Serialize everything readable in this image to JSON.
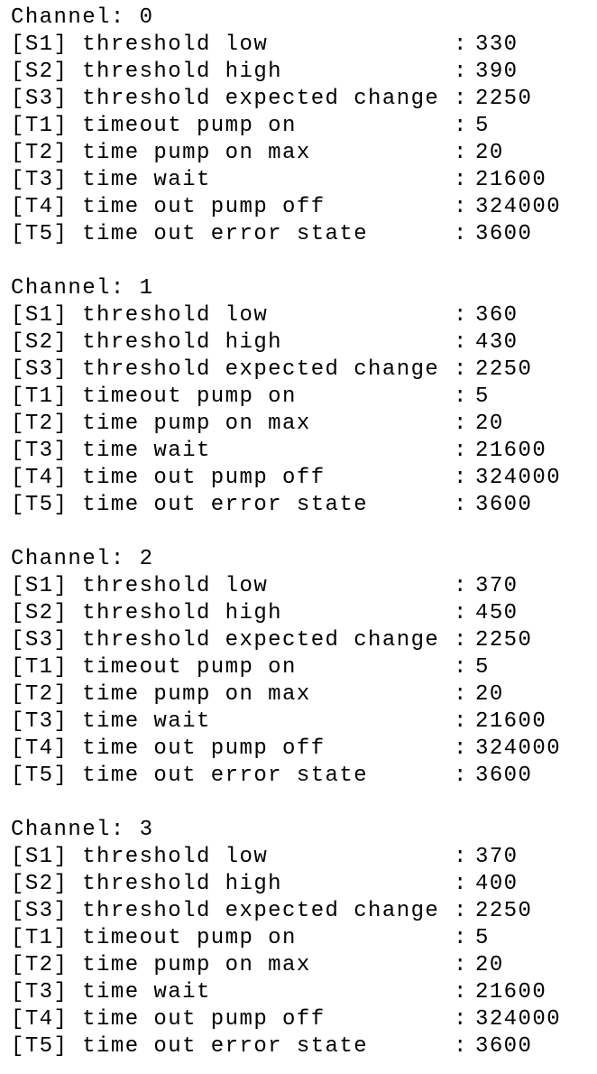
{
  "separator": ":",
  "channels": [
    {
      "header": "Channel: 0",
      "rows": [
        {
          "label": "[S1] threshold low",
          "value": 330
        },
        {
          "label": "[S2] threshold high",
          "value": 390
        },
        {
          "label": "[S3] threshold expected change",
          "value": 2250
        },
        {
          "label": "[T1] timeout pump on",
          "value": 5
        },
        {
          "label": "[T2] time pump on max",
          "value": 20
        },
        {
          "label": "[T3] time wait",
          "value": 21600
        },
        {
          "label": "[T4] time out pump off",
          "value": 324000
        },
        {
          "label": "[T5] time out error state",
          "value": 3600
        }
      ]
    },
    {
      "header": "Channel: 1",
      "rows": [
        {
          "label": "[S1] threshold low",
          "value": 360
        },
        {
          "label": "[S2] threshold high",
          "value": 430
        },
        {
          "label": "[S3] threshold expected change",
          "value": 2250
        },
        {
          "label": "[T1] timeout pump on",
          "value": 5
        },
        {
          "label": "[T2] time pump on max",
          "value": 20
        },
        {
          "label": "[T3] time wait",
          "value": 21600
        },
        {
          "label": "[T4] time out pump off",
          "value": 324000
        },
        {
          "label": "[T5] time out error state",
          "value": 3600
        }
      ]
    },
    {
      "header": "Channel: 2",
      "rows": [
        {
          "label": "[S1] threshold low",
          "value": 370
        },
        {
          "label": "[S2] threshold high",
          "value": 450
        },
        {
          "label": "[S3] threshold expected change",
          "value": 2250
        },
        {
          "label": "[T1] timeout pump on",
          "value": 5
        },
        {
          "label": "[T2] time pump on max",
          "value": 20
        },
        {
          "label": "[T3] time wait",
          "value": 21600
        },
        {
          "label": "[T4] time out pump off",
          "value": 324000
        },
        {
          "label": "[T5] time out error state",
          "value": 3600
        }
      ]
    },
    {
      "header": "Channel: 3",
      "rows": [
        {
          "label": "[S1] threshold low",
          "value": 370
        },
        {
          "label": "[S2] threshold high",
          "value": 400
        },
        {
          "label": "[S3] threshold expected change",
          "value": 2250
        },
        {
          "label": "[T1] timeout pump on",
          "value": 5
        },
        {
          "label": "[T2] time pump on max",
          "value": 20
        },
        {
          "label": "[T3] time wait",
          "value": 21600
        },
        {
          "label": "[T4] time out pump off",
          "value": 324000
        },
        {
          "label": "[T5] time out error state",
          "value": 3600
        }
      ]
    }
  ]
}
